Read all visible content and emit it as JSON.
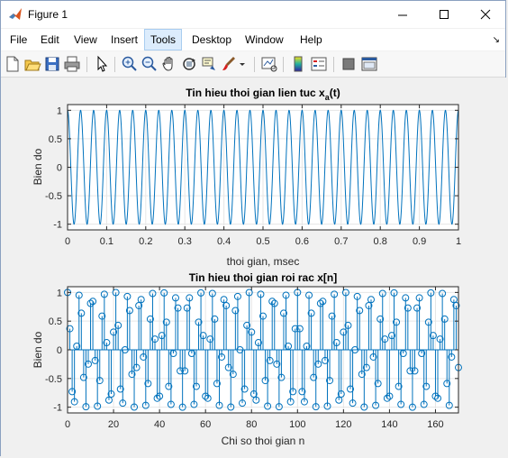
{
  "window": {
    "title": "Figure 1"
  },
  "menu": {
    "items": [
      "File",
      "Edit",
      "View",
      "Insert",
      "Tools",
      "Desktop",
      "Window",
      "Help"
    ]
  },
  "chart_data": [
    {
      "type": "line",
      "title": "Tin hieu thoi gian lien tuc x",
      "title_subscript": "a",
      "title_suffix": "(t)",
      "xlabel": "thoi gian, msec",
      "ylabel": "Bien do",
      "xlim": [
        0,
        1
      ],
      "ylim": [
        -1.1,
        1.1
      ],
      "xticks": [
        "0",
        "0.1",
        "0.2",
        "0.3",
        "0.4",
        "0.5",
        "0.6",
        "0.7",
        "0.8",
        "0.9",
        "1"
      ],
      "yticks": [
        "-1",
        "-0.5",
        "0",
        "0.5",
        "1"
      ],
      "grid": true,
      "series": [
        {
          "function": "cos(2*pi*30*t)",
          "frequency_khz": 30,
          "t_range": [
            0,
            1
          ]
        }
      ],
      "color": "#0072bd"
    },
    {
      "type": "stem",
      "title": "Tin hieu thoi gian roi rac x[n]",
      "xlabel": "Chi so thoi gian n",
      "ylabel": "Bien do",
      "xlim": [
        0,
        170
      ],
      "ylim": [
        -1.1,
        1.1
      ],
      "xticks": [
        "0",
        "20",
        "40",
        "60",
        "80",
        "100",
        "120",
        "140",
        "160"
      ],
      "yticks": [
        "-1",
        "-0.5",
        "0",
        "0.5",
        "1"
      ],
      "grid": true,
      "series": [
        {
          "function": "cos(2*pi*0.19*n)",
          "n_range": [
            0,
            170
          ]
        }
      ],
      "color": "#0072bd"
    }
  ]
}
